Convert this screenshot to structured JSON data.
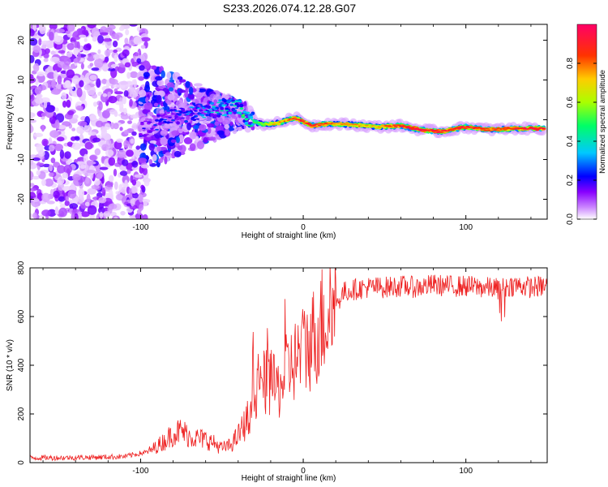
{
  "figure_title": "S233.2026.074.12.28.G07",
  "chart_data": [
    {
      "type": "heatmap",
      "xlabel": "Height of straight line (km)",
      "ylabel": "Frequency (Hz)",
      "xlim": [
        -168,
        150
      ],
      "ylim": [
        -25,
        24
      ],
      "x_ticks": [
        -100,
        0,
        100
      ],
      "y_ticks": [
        -20,
        -10,
        0,
        10,
        20
      ],
      "colorbar": {
        "label": "Normalized spectral amplitude",
        "range": [
          0,
          1
        ],
        "ticks": [
          "0.0",
          "0.2",
          "0.4",
          "0.6",
          "0.8"
        ],
        "tick_values": [
          0.0,
          0.2,
          0.4,
          0.6,
          0.8
        ],
        "colormap": [
          "#ffffff",
          "#cc88ff",
          "#8800ff",
          "#0000ff",
          "#00c8ff",
          "#00ff66",
          "#aaff00",
          "#ffcc00",
          "#ff3300",
          "#ff0066"
        ]
      },
      "ridge_points": [
        {
          "x": -100,
          "f": -2.5,
          "a": 0.15
        },
        {
          "x": -90,
          "f": -0.5,
          "a": 0.2
        },
        {
          "x": -80,
          "f": 1,
          "a": 0.22
        },
        {
          "x": -70,
          "f": 1.5,
          "a": 0.25
        },
        {
          "x": -60,
          "f": 2.5,
          "a": 0.3
        },
        {
          "x": -50,
          "f": 3,
          "a": 0.35
        },
        {
          "x": -40,
          "f": 3.5,
          "a": 0.4
        },
        {
          "x": -33,
          "f": 0,
          "a": 0.45
        },
        {
          "x": -25,
          "f": -1.2,
          "a": 0.6
        },
        {
          "x": -15,
          "f": -0.8,
          "a": 0.75
        },
        {
          "x": -5,
          "f": 0.5,
          "a": 0.85
        },
        {
          "x": 5,
          "f": -1.5,
          "a": 0.9
        },
        {
          "x": 15,
          "f": -1,
          "a": 0.85
        },
        {
          "x": 30,
          "f": -1.2,
          "a": 0.75
        },
        {
          "x": 45,
          "f": -1.8,
          "a": 0.7
        },
        {
          "x": 60,
          "f": -1.5,
          "a": 0.9
        },
        {
          "x": 72,
          "f": -2.5,
          "a": 0.95
        },
        {
          "x": 85,
          "f": -3,
          "a": 0.9
        },
        {
          "x": 100,
          "f": -1.8,
          "a": 0.9
        },
        {
          "x": 115,
          "f": -2.5,
          "a": 0.85
        },
        {
          "x": 130,
          "f": -2.2,
          "a": 0.9
        },
        {
          "x": 148,
          "f": -2.2,
          "a": 0.95
        }
      ]
    },
    {
      "type": "line",
      "xlabel": "Height of straight line (km)",
      "ylabel": "SNR (10 * v/v)",
      "xlim": [
        -168,
        150
      ],
      "ylim": [
        0,
        800
      ],
      "x_ticks": [
        -100,
        0,
        100
      ],
      "y_ticks": [
        0,
        200,
        400,
        600,
        800
      ],
      "series": [
        {
          "name": "SNR",
          "color": "#ee2222",
          "x": [
            -168,
            -150,
            -130,
            -110,
            -95,
            -85,
            -80,
            -75,
            -70,
            -65,
            -60,
            -55,
            -50,
            -45,
            -40,
            -35,
            -30,
            -25,
            -20,
            -15,
            -10,
            -5,
            0,
            5,
            10,
            15,
            20,
            25,
            30,
            40,
            50,
            60,
            70,
            80,
            90,
            100,
            110,
            120,
            130,
            140,
            150
          ],
          "values": [
            20,
            20,
            22,
            25,
            45,
            90,
            120,
            130,
            110,
            100,
            95,
            80,
            60,
            70,
            110,
            170,
            250,
            330,
            320,
            300,
            380,
            420,
            460,
            500,
            560,
            620,
            650,
            700,
            710,
            720,
            720,
            725,
            720,
            730,
            725,
            725,
            720,
            715,
            730,
            720,
            725
          ]
        }
      ]
    }
  ]
}
